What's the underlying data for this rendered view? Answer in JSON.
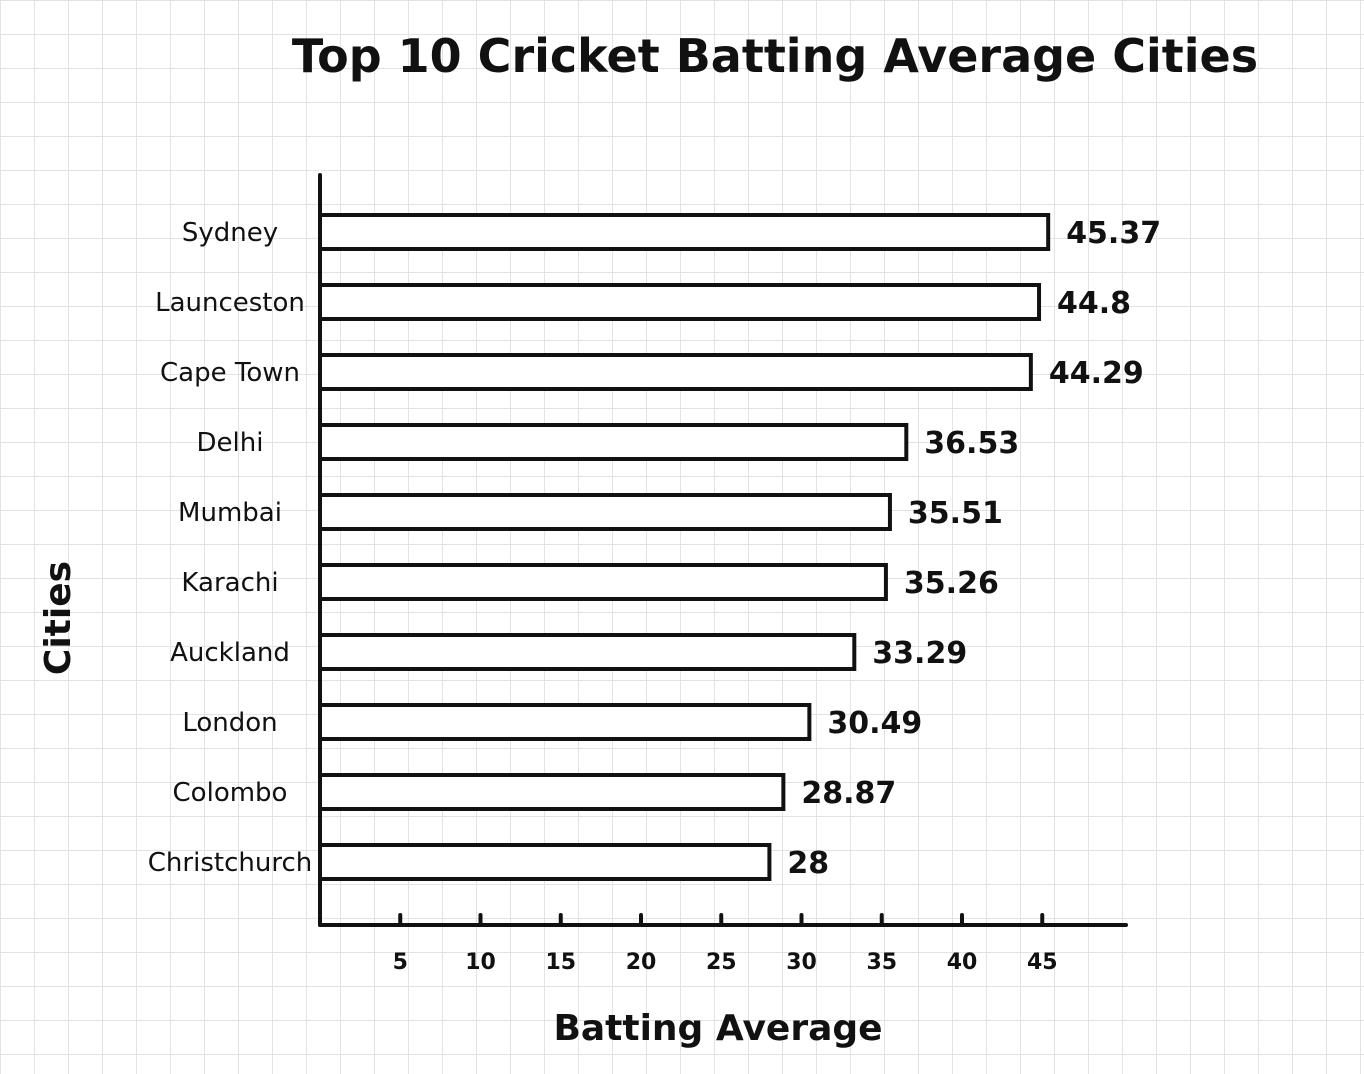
{
  "chart_data": {
    "type": "bar",
    "orientation": "horizontal",
    "title": "Top 10 Cricket Batting Average Cities",
    "xlabel": "Batting Average",
    "ylabel": "Cities",
    "categories": [
      "Sydney",
      "Launceston",
      "Cape Town",
      "Delhi",
      "Mumbai",
      "Karachi",
      "Auckland",
      "London",
      "Colombo",
      "Christchurch"
    ],
    "values": [
      45.37,
      44.8,
      44.29,
      36.53,
      35.51,
      35.26,
      33.29,
      30.49,
      28.87,
      28
    ],
    "value_labels": [
      "45.37",
      "44.8",
      "44.29",
      "36.53",
      "35.51",
      "35.26",
      "33.29",
      "30.49",
      "28.87",
      "28"
    ],
    "x_ticks": [
      5,
      10,
      15,
      20,
      25,
      30,
      35,
      40,
      45
    ],
    "x_tick_labels": [
      "5",
      "10",
      "15",
      "20",
      "25",
      "30",
      "35",
      "40",
      "45"
    ],
    "xlim": [
      0,
      50
    ],
    "grid": false,
    "legend": "none",
    "colors": {
      "ink": "#111111",
      "bar_fill": "#ffffff",
      "paper_grid": "#e3e3e3"
    }
  }
}
